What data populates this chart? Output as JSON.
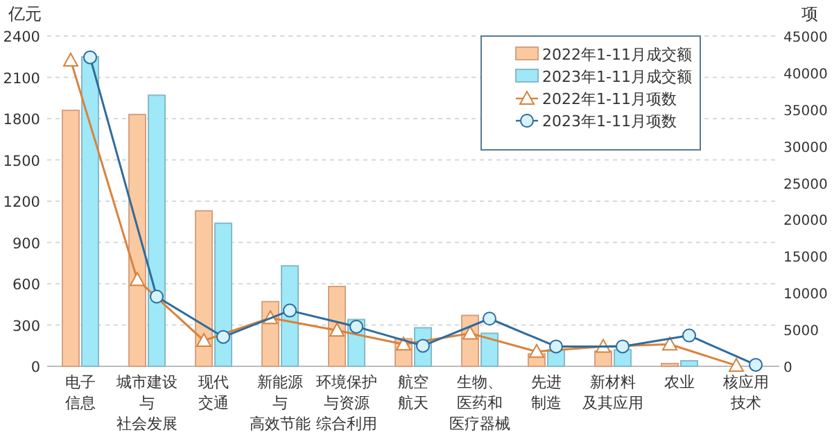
{
  "chart_data": {
    "type": "bar",
    "ylabel": "亿元",
    "y2label": "项",
    "categories": [
      "电子信息",
      "城市建设与社会发展",
      "现代交通",
      "新能源与高效节能",
      "环境保护与资源综合利用",
      "航空航天",
      "生物、医药和医疗器械",
      "先进制造",
      "新材料及其应用",
      "农业",
      "核应用技术"
    ],
    "series": [
      {
        "name": "2022年1-11月成交额",
        "color": "#fbc9a0",
        "values": [
          1860,
          1830,
          1130,
          470,
          580,
          200,
          370,
          90,
          110,
          20,
          0
        ]
      },
      {
        "name": "2023年1-11月成交额",
        "color": "#9ee8f8",
        "values": [
          2250,
          1970,
          1040,
          730,
          340,
          280,
          240,
          120,
          120,
          40,
          null
        ]
      },
      {
        "name": "2022年1-11月项数",
        "type": "line",
        "axis": "y2",
        "marker": "triangle",
        "color": "#d9823b",
        "values": [
          41700,
          11800,
          3500,
          6600,
          4900,
          3000,
          4500,
          2000,
          2700,
          3000,
          100
        ]
      },
      {
        "name": "2023年1-11月项数",
        "type": "line",
        "axis": "y2",
        "marker": "circle",
        "color": "#2e6c9e",
        "values": [
          42100,
          9500,
          4000,
          7600,
          5400,
          2800,
          6500,
          2700,
          2700,
          4200,
          200
        ]
      }
    ],
    "ylim": [
      0,
      2400
    ],
    "yticks": [
      0,
      300,
      600,
      900,
      1200,
      1500,
      1800,
      2100,
      2400
    ],
    "y2lim": [
      0,
      45000
    ],
    "y2ticks": [
      0,
      5000,
      10000,
      15000,
      20000,
      25000,
      30000,
      35000,
      40000,
      45000
    ],
    "grid": "y",
    "legend": "top right"
  }
}
